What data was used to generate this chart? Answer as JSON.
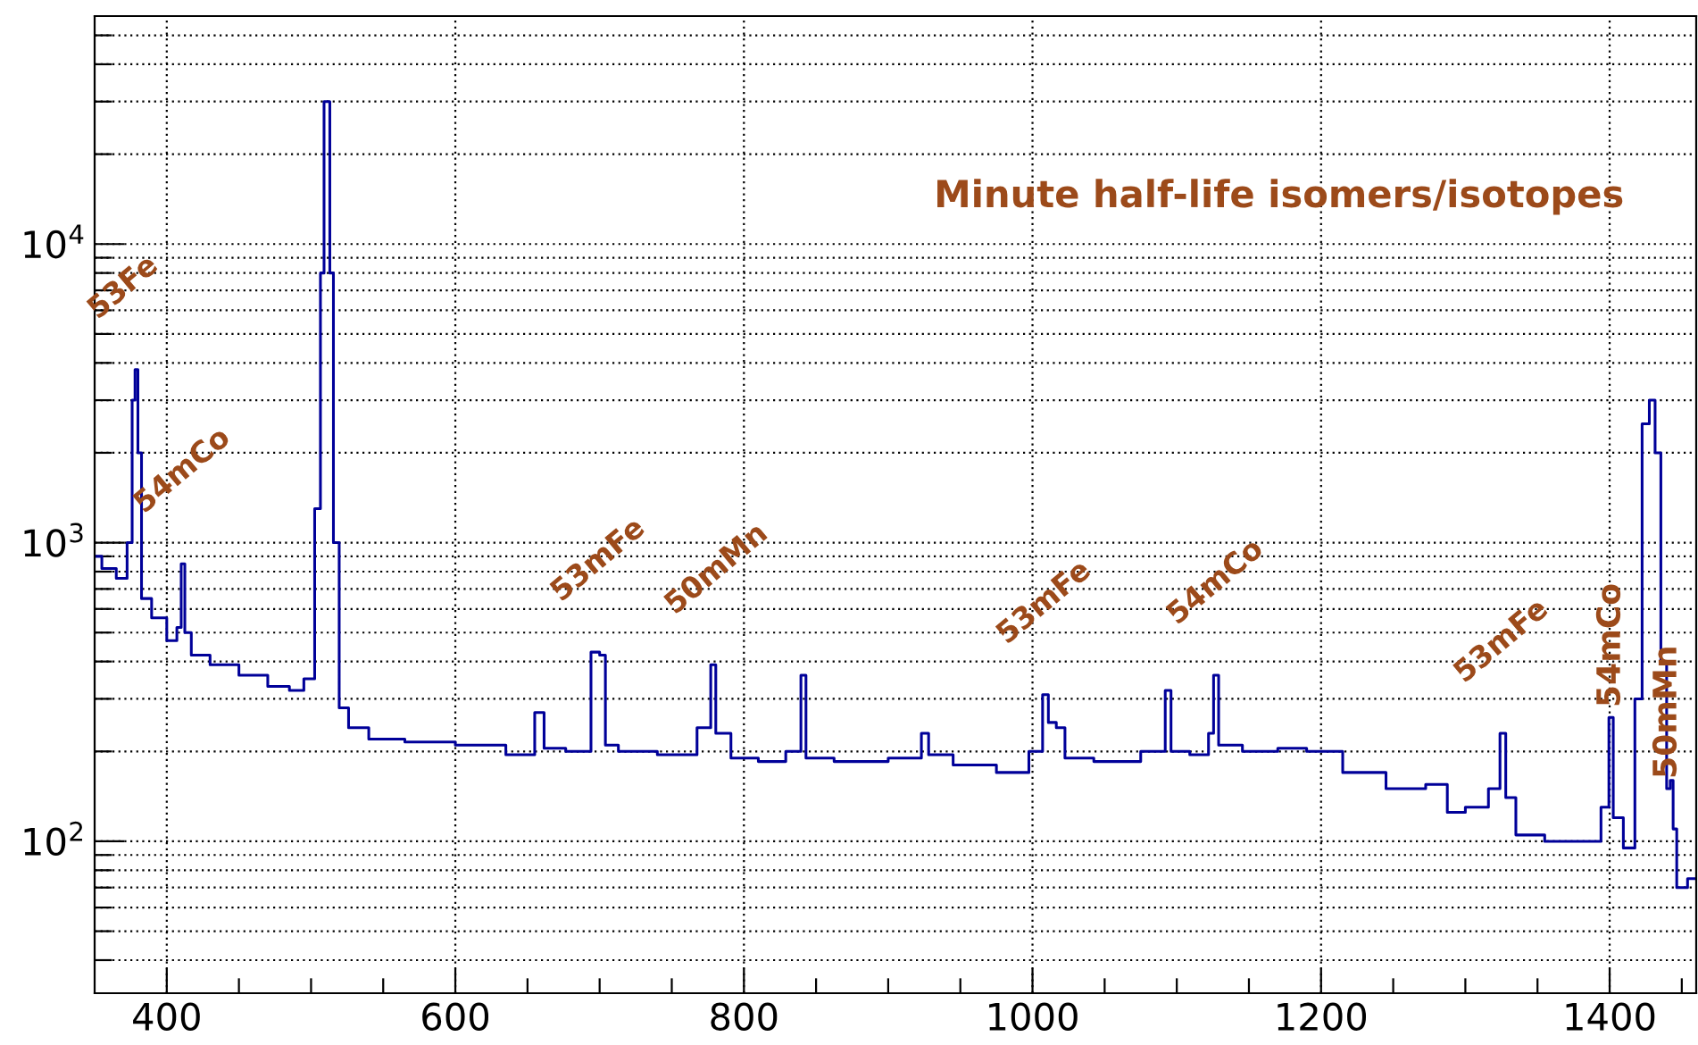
{
  "chart_data": {
    "type": "step",
    "title": "Minute half-life isomers/isotopes",
    "x": [
      350,
      360,
      370,
      375,
      377,
      379,
      381,
      384,
      395,
      405,
      409,
      411,
      414,
      420,
      440,
      460,
      480,
      490,
      500,
      505,
      508,
      510,
      512,
      514,
      517,
      522,
      530,
      550,
      580,
      620,
      650,
      660,
      663,
      690,
      698,
      702,
      706,
      720,
      760,
      775,
      779,
      782,
      800,
      820,
      838,
      841,
      845,
      880,
      920,
      926,
      930,
      960,
      990,
      1005,
      1009,
      1013,
      1020,
      1025,
      1060,
      1090,
      1094,
      1098,
      1120,
      1124,
      1127,
      1131,
      1160,
      1180,
      1200,
      1230,
      1260,
      1285,
      1290,
      1310,
      1322,
      1326,
      1330,
      1340,
      1370,
      1390,
      1398,
      1401,
      1404,
      1415,
      1420,
      1425,
      1430,
      1433,
      1438,
      1441,
      1443,
      1445,
      1448,
      1460
    ],
    "series": [
      {
        "color": "#000099",
        "values": [
          900,
          820,
          760,
          1000,
          3000,
          3800,
          2000,
          650,
          560,
          470,
          520,
          850,
          500,
          420,
          390,
          360,
          330,
          320,
          350,
          1300,
          8000,
          30000,
          30000,
          8000,
          1000,
          280,
          240,
          220,
          215,
          210,
          195,
          270,
          205,
          200,
          430,
          420,
          210,
          200,
          195,
          240,
          390,
          230,
          190,
          185,
          200,
          360,
          190,
          185,
          190,
          230,
          195,
          180,
          170,
          200,
          310,
          250,
          240,
          190,
          185,
          200,
          320,
          200,
          195,
          230,
          360,
          210,
          200,
          205,
          200,
          170,
          150,
          155,
          125,
          130,
          150,
          230,
          140,
          105,
          100,
          100,
          130,
          260,
          120,
          95,
          300,
          2500,
          3000,
          2000,
          400,
          150,
          160,
          110,
          70,
          75
        ]
      }
    ],
    "xlim": [
      350,
      1460
    ],
    "xticks": [
      {
        "value": 400,
        "label": "400"
      },
      {
        "value": 450,
        "label": null
      },
      {
        "value": 500,
        "label": null
      },
      {
        "value": 550,
        "label": null
      },
      {
        "value": 600,
        "label": "600"
      },
      {
        "value": 650,
        "label": null
      },
      {
        "value": 700,
        "label": null
      },
      {
        "value": 750,
        "label": null
      },
      {
        "value": 800,
        "label": "800"
      },
      {
        "value": 850,
        "label": null
      },
      {
        "value": 900,
        "label": null
      },
      {
        "value": 950,
        "label": null
      },
      {
        "value": 1000,
        "label": "1000"
      },
      {
        "value": 1050,
        "label": null
      },
      {
        "value": 1100,
        "label": null
      },
      {
        "value": 1150,
        "label": null
      },
      {
        "value": 1200,
        "label": "1200"
      },
      {
        "value": 1250,
        "label": null
      },
      {
        "value": 1300,
        "label": null
      },
      {
        "value": 1350,
        "label": null
      },
      {
        "value": 1400,
        "label": "1400"
      },
      {
        "value": 1450,
        "label": null
      }
    ],
    "log": true,
    "ylim": [
      31,
      58000
    ],
    "yticks": [
      {
        "value": 40,
        "label": null
      },
      {
        "value": 50,
        "label": null
      },
      {
        "value": 60,
        "label": null
      },
      {
        "value": 70,
        "label": null
      },
      {
        "value": 80,
        "label": null
      },
      {
        "value": 90,
        "label": null
      },
      {
        "value": 100,
        "label": "10$^{2}$"
      },
      {
        "value": 200,
        "label": null
      },
      {
        "value": 300,
        "label": null
      },
      {
        "value": 400,
        "label": null
      },
      {
        "value": 500,
        "label": null
      },
      {
        "value": 600,
        "label": null
      },
      {
        "value": 700,
        "label": null
      },
      {
        "value": 800,
        "label": null
      },
      {
        "value": 900,
        "label": null
      },
      {
        "value": 1000,
        "label": "10$^{3}$"
      },
      {
        "value": 2000,
        "label": null
      },
      {
        "value": 3000,
        "label": null
      },
      {
        "value": 4000,
        "label": null
      },
      {
        "value": 5000,
        "label": null
      },
      {
        "value": 6000,
        "label": null
      },
      {
        "value": 7000,
        "label": null
      },
      {
        "value": 8000,
        "label": null
      },
      {
        "value": 9000,
        "label": null
      },
      {
        "value": 10000,
        "label": "10$^{4}$"
      },
      {
        "value": 20000,
        "label": null
      },
      {
        "value": 30000,
        "label": null
      },
      {
        "value": 40000,
        "label": null
      },
      {
        "value": 50000,
        "label": null
      }
    ],
    "grid": true,
    "annotations": [
      {
        "text": "53Fe",
        "x": 379,
        "y": 3800
      },
      {
        "text": "54mCo",
        "x": 411,
        "y": 850
      },
      {
        "text": "53mFe",
        "x": 700,
        "y": 430
      },
      {
        "text": "50mMn",
        "x": 779,
        "y": 390
      },
      {
        "text": "53mFe",
        "x": 1009,
        "y": 310
      },
      {
        "text": "54mCo",
        "x": 1127,
        "y": 360
      },
      {
        "text": "53mFe",
        "x": 1326,
        "y": 230
      },
      {
        "text": "54mCo",
        "x": 1401,
        "y": 260
      },
      {
        "text": "50mMn",
        "x": 1440,
        "y": 150
      }
    ]
  }
}
